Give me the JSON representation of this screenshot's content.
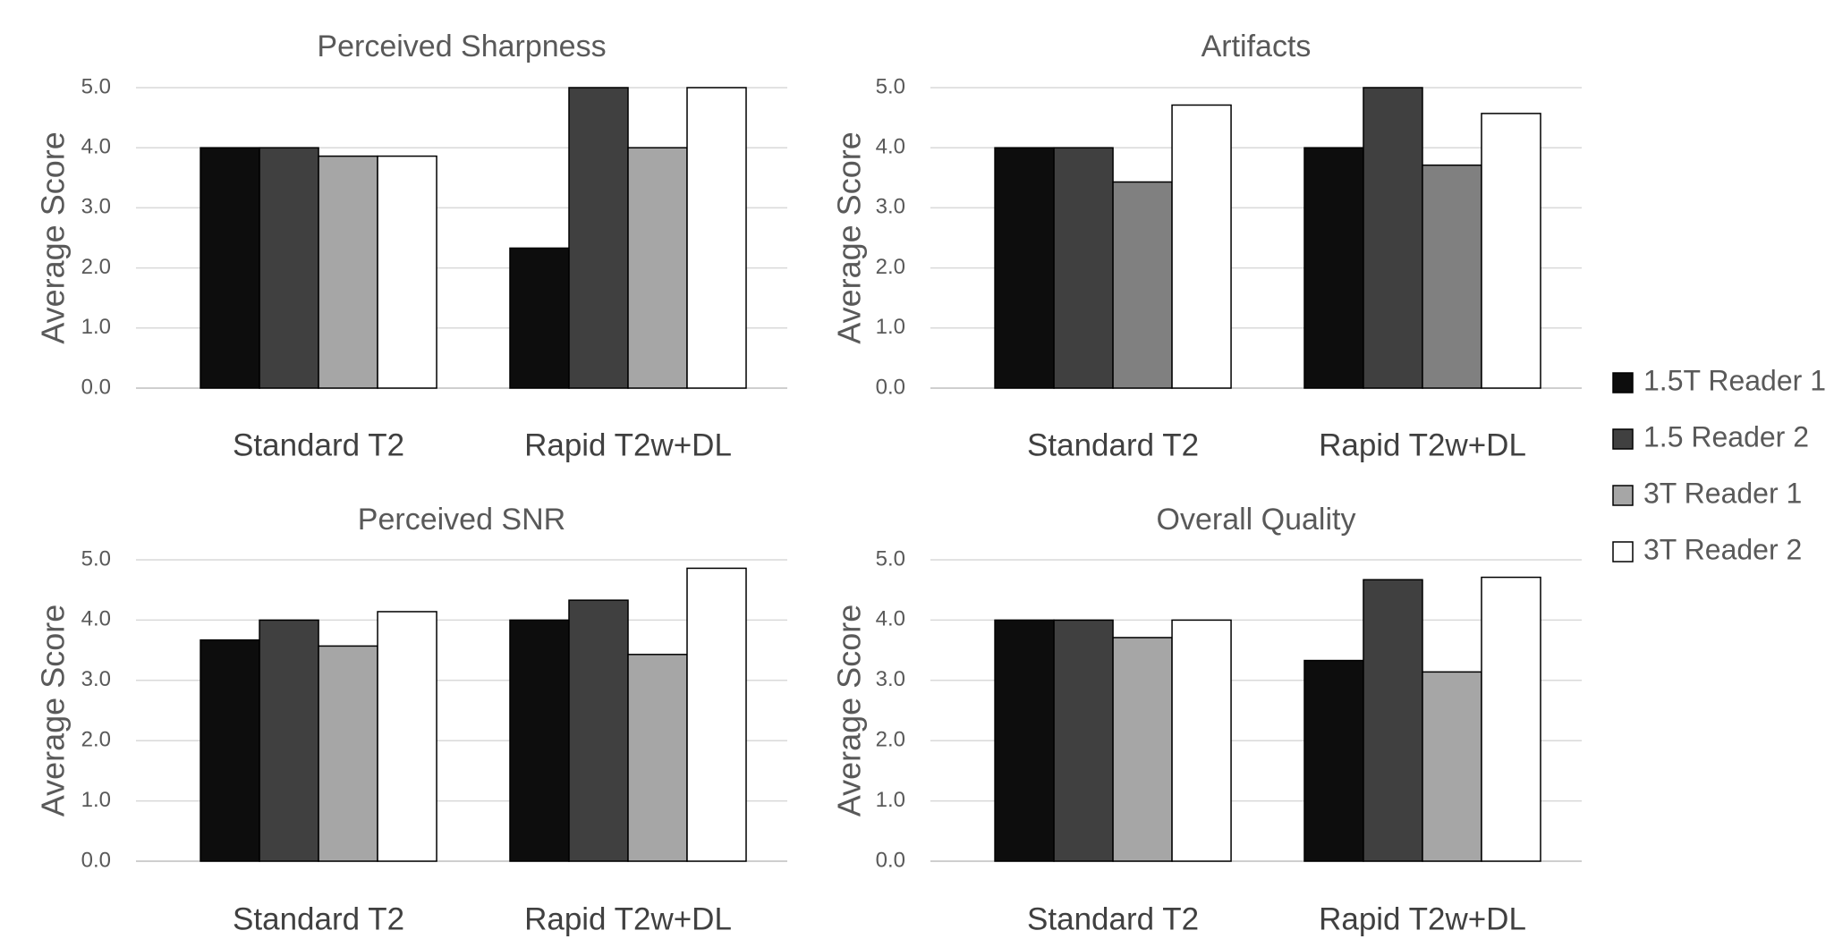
{
  "chart_data": [
    {
      "type": "bar",
      "title": "Perceived Sharpness",
      "xlabel": "",
      "ylabel": "Average Score",
      "ylim": [
        0,
        5
      ],
      "yticks": [
        "0.0",
        "1.0",
        "2.0",
        "3.0",
        "4.0",
        "5.0"
      ],
      "grid": true,
      "categories": [
        "Standard T2",
        "Rapid T2w+DL"
      ],
      "series": [
        {
          "name": "1.5T Reader 1",
          "values": [
            4.0,
            2.33
          ],
          "color": "#0d0d0d"
        },
        {
          "name": "1.5 Reader 2",
          "values": [
            4.0,
            5.0
          ],
          "color": "#404040"
        },
        {
          "name": "3T Reader 1",
          "values": [
            3.86,
            4.0
          ],
          "color": "#a6a6a6"
        },
        {
          "name": "3T Reader 2",
          "values": [
            3.86,
            5.0
          ],
          "color": "#ffffff"
        }
      ]
    },
    {
      "type": "bar",
      "title": "Artifacts",
      "xlabel": "",
      "ylabel": "Average Score",
      "ylim": [
        0,
        5
      ],
      "yticks": [
        "0.0",
        "1.0",
        "2.0",
        "3.0",
        "4.0",
        "5.0"
      ],
      "grid": true,
      "categories": [
        "Standard T2",
        "Rapid T2w+DL"
      ],
      "series": [
        {
          "name": "1.5T Reader 1",
          "values": [
            4.0,
            4.0
          ],
          "color": "#0d0d0d"
        },
        {
          "name": "1.5 Reader 2",
          "values": [
            4.0,
            5.0
          ],
          "color": "#404040"
        },
        {
          "name": "3T Reader 1",
          "values": [
            3.43,
            3.71
          ],
          "color": "#808080"
        },
        {
          "name": "3T Reader 2",
          "values": [
            4.71,
            4.57
          ],
          "color": "#ffffff"
        }
      ]
    },
    {
      "type": "bar",
      "title": "Perceived SNR",
      "xlabel": "",
      "ylabel": "Average Score",
      "ylim": [
        0,
        5
      ],
      "yticks": [
        "0.0",
        "1.0",
        "2.0",
        "3.0",
        "4.0",
        "5.0"
      ],
      "grid": true,
      "categories": [
        "Standard T2",
        "Rapid T2w+DL"
      ],
      "series": [
        {
          "name": "1.5T Reader 1",
          "values": [
            3.67,
            4.0
          ],
          "color": "#0d0d0d"
        },
        {
          "name": "1.5 Reader 2",
          "values": [
            4.0,
            4.33
          ],
          "color": "#404040"
        },
        {
          "name": "3T Reader 1",
          "values": [
            3.57,
            3.43
          ],
          "color": "#a6a6a6"
        },
        {
          "name": "3T Reader 2",
          "values": [
            4.14,
            4.86
          ],
          "color": "#ffffff"
        }
      ]
    },
    {
      "type": "bar",
      "title": "Overall Quality",
      "xlabel": "",
      "ylabel": "Average Score",
      "ylim": [
        0,
        5
      ],
      "yticks": [
        "0.0",
        "1.0",
        "2.0",
        "3.0",
        "4.0",
        "5.0"
      ],
      "grid": true,
      "categories": [
        "Standard T2",
        "Rapid T2w+DL"
      ],
      "series": [
        {
          "name": "1.5T Reader 1",
          "values": [
            4.0,
            3.33
          ],
          "color": "#0d0d0d"
        },
        {
          "name": "1.5 Reader 2",
          "values": [
            4.0,
            4.67
          ],
          "color": "#404040"
        },
        {
          "name": "3T Reader 1",
          "values": [
            3.71,
            3.14
          ],
          "color": "#a6a6a6"
        },
        {
          "name": "3T Reader 2",
          "values": [
            4.0,
            4.71
          ],
          "color": "#ffffff"
        }
      ]
    }
  ],
  "legend": {
    "placement": "right",
    "items": [
      {
        "label": "1.5T Reader 1",
        "color": "#0d0d0d"
      },
      {
        "label": "1.5 Reader 2",
        "color": "#404040"
      },
      {
        "label": "3T Reader 1",
        "color": "#a6a6a6"
      },
      {
        "label": "3T Reader 2",
        "color": "#ffffff"
      }
    ]
  }
}
